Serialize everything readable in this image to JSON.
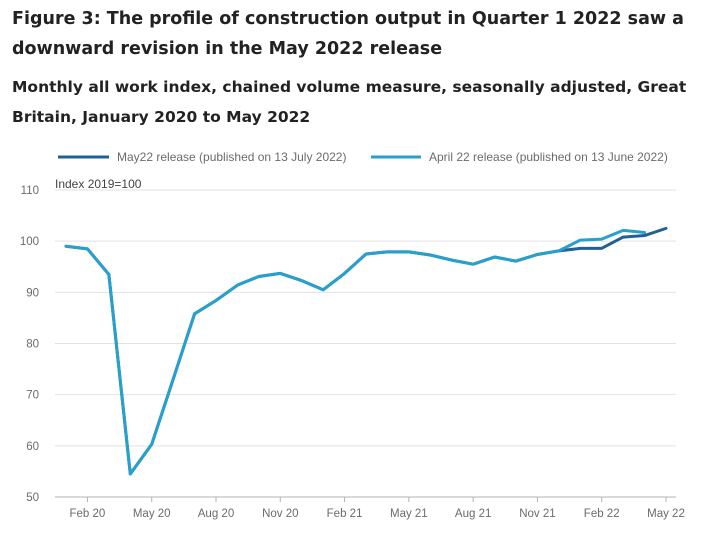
{
  "title": "Figure 3: The profile of construction output in Quarter 1 2022 saw a downward revision in the May 2022 release",
  "subtitle": "Monthly all work index, chained volume measure, seasonally adjusted, Great Britain, January 2020 to May 2022",
  "chart_data": {
    "type": "line",
    "y_unit_label": "Index 2019=100",
    "ylim": [
      50,
      110
    ],
    "y_ticks": [
      50,
      60,
      70,
      80,
      90,
      100,
      110
    ],
    "x": [
      "Jan 20",
      "Feb 20",
      "Mar 20",
      "Apr 20",
      "May 20",
      "Jun 20",
      "Jul 20",
      "Aug 20",
      "Sep 20",
      "Oct 20",
      "Nov 20",
      "Dec 20",
      "Jan 21",
      "Feb 21",
      "Mar 21",
      "Apr 21",
      "May 21",
      "Jun 21",
      "Jul 21",
      "Aug 21",
      "Sep 21",
      "Oct 21",
      "Nov 21",
      "Dec 21",
      "Jan 22",
      "Feb 22",
      "Mar 22",
      "Apr 22",
      "May 22"
    ],
    "x_tick_labels": [
      "Feb 20",
      "May 20",
      "Aug 20",
      "Nov 20",
      "Feb 21",
      "May 21",
      "Aug 21",
      "Nov 21",
      "Feb 22",
      "May 22"
    ],
    "grid": "horizontal",
    "legend_position": "top",
    "series": [
      {
        "name": "May22 release (published on 13 July 2022)",
        "color": "#206095",
        "values": [
          99.0,
          98.5,
          93.5,
          54.5,
          60.3,
          73.0,
          85.8,
          88.4,
          91.4,
          93.1,
          93.7,
          92.3,
          90.5,
          93.7,
          97.5,
          97.9,
          97.9,
          97.3,
          96.3,
          95.5,
          96.9,
          96.1,
          97.4,
          98.1,
          98.6,
          98.6,
          100.8,
          101.1,
          102.5
        ]
      },
      {
        "name": "April 22 release (published on 13 June 2022)",
        "color": "#27a0cc",
        "values": [
          99.0,
          98.5,
          93.5,
          54.5,
          60.3,
          73.0,
          85.8,
          88.4,
          91.4,
          93.1,
          93.7,
          92.3,
          90.5,
          93.7,
          97.5,
          97.9,
          97.9,
          97.3,
          96.3,
          95.5,
          96.9,
          96.1,
          97.4,
          98.1,
          100.2,
          100.4,
          102.1,
          101.7,
          null
        ]
      }
    ]
  }
}
